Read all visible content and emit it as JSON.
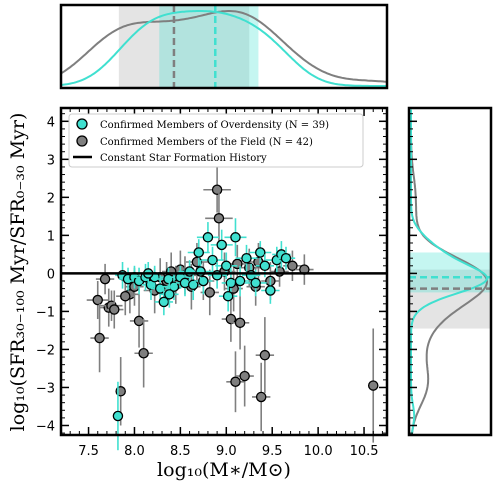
{
  "chart_data": {
    "type": "scatter",
    "main": {
      "xlabel": "log₁₀(M∗/M⊙)",
      "ylabel": "log₁₀(SFR₃₀₋₁₀₀ Myr/SFR₀₋₃₀ Myr)",
      "xlim": [
        7.2,
        10.75
      ],
      "ylim": [
        -4.25,
        4.35
      ],
      "xticks": [
        7.5,
        8.0,
        8.5,
        9.0,
        9.5,
        10.0,
        10.5
      ],
      "xtick_labels": [
        "7.5",
        "8.0",
        "8.5",
        "9.0",
        "9.5",
        "10.0",
        "10.5"
      ],
      "yticks": [
        -4,
        -3,
        -2,
        -1,
        0,
        1,
        2,
        3,
        4
      ],
      "ytick_labels": [
        "−4",
        "−3",
        "−2",
        "−1",
        "0",
        "1",
        "2",
        "3",
        "4"
      ],
      "hline": 0,
      "legend": {
        "placement": "top-left",
        "entries": [
          "Confirmed Members of Overdensity (N = 39)",
          "Confirmed Members of the Field (N = 42)",
          "Constant Star Formation History"
        ]
      }
    },
    "series": [
      {
        "name": "Confirmed Members of Overdensity (N = 39)",
        "color": "#40e0d0",
        "points": [
          [
            7.82,
            -3.75,
            0.05,
            0.9
          ],
          [
            7.87,
            -0.05,
            0.08,
            0.35
          ],
          [
            7.93,
            -0.15,
            0.1,
            0.3
          ],
          [
            8.0,
            -0.1,
            0.1,
            0.3
          ],
          [
            8.05,
            -0.2,
            0.1,
            0.35
          ],
          [
            8.12,
            -0.1,
            0.12,
            0.35
          ],
          [
            8.18,
            -0.3,
            0.1,
            0.4
          ],
          [
            8.22,
            -0.1,
            0.1,
            0.3
          ],
          [
            8.28,
            -0.4,
            0.1,
            0.35
          ],
          [
            8.32,
            -0.75,
            0.1,
            0.35
          ],
          [
            8.37,
            -0.15,
            0.12,
            0.3
          ],
          [
            8.43,
            -0.35,
            0.12,
            0.35
          ],
          [
            8.5,
            -0.1,
            0.12,
            0.3
          ],
          [
            8.55,
            -0.25,
            0.1,
            0.35
          ],
          [
            8.6,
            0.05,
            0.12,
            0.3
          ],
          [
            8.64,
            -0.3,
            0.1,
            0.4
          ],
          [
            8.7,
            0.55,
            0.12,
            0.35
          ],
          [
            8.75,
            -0.2,
            0.1,
            0.35
          ],
          [
            8.8,
            0.95,
            0.12,
            0.4
          ],
          [
            8.85,
            0.35,
            0.12,
            0.35
          ],
          [
            8.9,
            -0.05,
            0.1,
            0.35
          ],
          [
            8.95,
            0.75,
            0.12,
            0.4
          ],
          [
            9.0,
            0.2,
            0.12,
            0.35
          ],
          [
            9.05,
            -0.25,
            0.1,
            0.4
          ],
          [
            9.1,
            0.95,
            0.12,
            0.5
          ],
          [
            9.15,
            -0.2,
            0.1,
            0.4
          ],
          [
            9.22,
            0.4,
            0.12,
            0.35
          ],
          [
            9.27,
            -0.05,
            0.1,
            0.3
          ],
          [
            9.32,
            -0.25,
            0.12,
            0.35
          ],
          [
            9.37,
            0.55,
            0.12,
            0.3
          ],
          [
            9.42,
            0.2,
            0.1,
            0.3
          ],
          [
            9.48,
            -0.45,
            0.1,
            0.35
          ],
          [
            9.55,
            0.35,
            0.12,
            0.35
          ],
          [
            9.6,
            0.5,
            0.1,
            0.35
          ],
          [
            9.65,
            0.4,
            0.1,
            0.3
          ],
          [
            8.15,
            0.0,
            0.1,
            0.3
          ],
          [
            8.38,
            -0.55,
            0.1,
            0.35
          ],
          [
            8.72,
            0.05,
            0.12,
            0.3
          ],
          [
            9.02,
            -0.6,
            0.1,
            0.4
          ]
        ]
      },
      {
        "name": "Confirmed Members of the Field (N = 42)",
        "color": "#7f7f7f",
        "points": [
          [
            7.6,
            -0.7,
            0.12,
            0.5
          ],
          [
            7.62,
            -1.7,
            0.1,
            0.9
          ],
          [
            7.68,
            -0.15,
            0.1,
            0.4
          ],
          [
            7.72,
            -0.9,
            0.1,
            0.5
          ],
          [
            7.75,
            -0.85,
            0.12,
            0.4
          ],
          [
            7.78,
            -0.95,
            0.1,
            0.5
          ],
          [
            7.85,
            -3.1,
            0.05,
            0.9
          ],
          [
            7.95,
            -0.55,
            0.1,
            0.5
          ],
          [
            8.05,
            -1.25,
            0.1,
            0.7
          ],
          [
            8.1,
            -2.1,
            0.1,
            0.9
          ],
          [
            8.22,
            -0.45,
            0.12,
            0.6
          ],
          [
            8.35,
            -0.2,
            0.1,
            0.5
          ],
          [
            8.5,
            0.1,
            0.12,
            0.5
          ],
          [
            8.62,
            -0.35,
            0.1,
            0.6
          ],
          [
            8.75,
            -0.2,
            0.12,
            0.5
          ],
          [
            8.9,
            2.2,
            0.15,
            0.6
          ],
          [
            8.92,
            1.45,
            0.15,
            0.7
          ],
          [
            9.05,
            -1.2,
            0.1,
            0.6
          ],
          [
            9.1,
            -2.85,
            0.1,
            0.8
          ],
          [
            9.15,
            -1.3,
            0.1,
            0.7
          ],
          [
            9.2,
            -2.7,
            0.1,
            0.8
          ],
          [
            9.32,
            -0.35,
            0.1,
            0.5
          ],
          [
            9.38,
            -3.25,
            0.1,
            0.9
          ],
          [
            9.42,
            -2.15,
            0.1,
            1.0
          ],
          [
            9.72,
            0.2,
            0.1,
            0.4
          ],
          [
            9.85,
            0.1,
            0.1,
            0.4
          ],
          [
            10.6,
            -2.95,
            0.05,
            1.5
          ],
          [
            8.45,
            -0.3,
            0.1,
            0.5
          ],
          [
            8.55,
            -0.05,
            0.12,
            0.5
          ],
          [
            8.68,
            0.3,
            0.12,
            0.5
          ],
          [
            8.82,
            -0.5,
            0.1,
            0.6
          ],
          [
            8.98,
            0.05,
            0.12,
            0.5
          ],
          [
            9.08,
            -0.4,
            0.1,
            0.6
          ],
          [
            9.25,
            0.15,
            0.12,
            0.5
          ],
          [
            9.48,
            -0.2,
            0.1,
            0.5
          ],
          [
            9.58,
            0.05,
            0.1,
            0.4
          ],
          [
            8.0,
            -0.35,
            0.1,
            0.5
          ],
          [
            8.28,
            -0.1,
            0.1,
            0.5
          ],
          [
            7.9,
            -0.6,
            0.1,
            0.5
          ],
          [
            8.4,
            0.05,
            0.1,
            0.5
          ],
          [
            9.12,
            0.25,
            0.1,
            0.5
          ],
          [
            9.35,
            0.3,
            0.1,
            0.5
          ]
        ]
      }
    ],
    "top_histogram": {
      "overdensity": {
        "color": "#40e0d0",
        "median": 8.88,
        "band": [
          8.27,
          9.35
        ]
      },
      "field": {
        "color": "#7f7f7f",
        "median": 8.43,
        "band": [
          7.83,
          9.25
        ]
      }
    },
    "right_histogram": {
      "overdensity": {
        "color": "#40e0d0",
        "median": -0.1,
        "band": [
          -0.5,
          0.55
        ]
      },
      "field": {
        "color": "#7f7f7f",
        "median": -0.4,
        "band": [
          -1.45,
          0.1
        ]
      }
    }
  }
}
